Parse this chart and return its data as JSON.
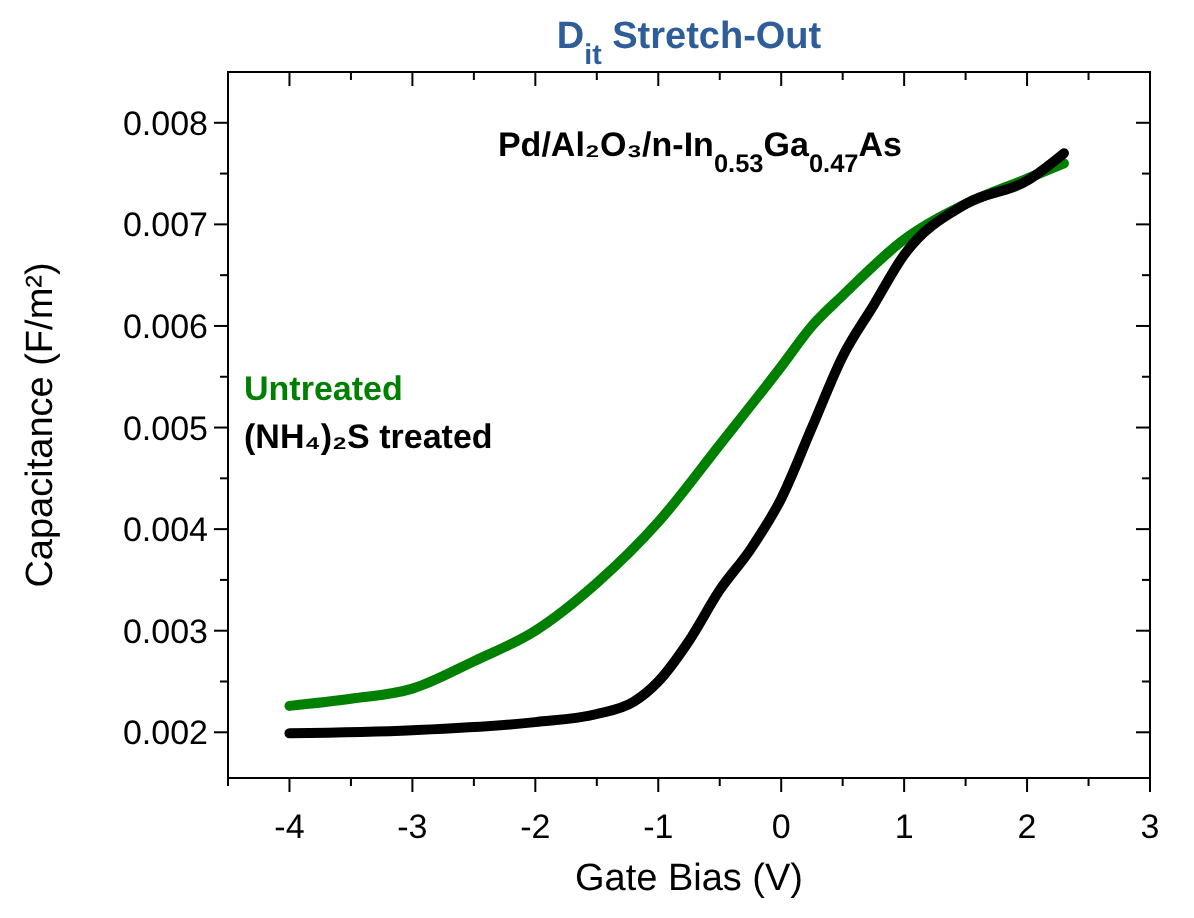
{
  "chart_data": {
    "type": "line",
    "title": "D$_{it}$ Stretch-Out",
    "xlabel": "Gate Bias (V)",
    "ylabel": "Capacitance (F/m²)",
    "annotations": [
      "Pd/Al₂O₃/n-In$_{0.53}$Ga$_{0.47}$As"
    ],
    "legend": "left",
    "marker": "none",
    "line_style": "solid",
    "grid": false,
    "xlim": [
      -4.5,
      3
    ],
    "xticks": [
      {
        "value": -4.5,
        "label": null
      },
      -4,
      {
        "value": -3.5,
        "label": null
      },
      -3,
      {
        "value": -2.5,
        "label": null
      },
      -2,
      {
        "value": -1.5,
        "label": null
      },
      -1,
      {
        "value": -0.5,
        "label": null
      },
      0,
      {
        "value": 0.5,
        "label": null
      },
      1,
      {
        "value": 1.5,
        "label": null
      },
      2,
      {
        "value": 2.5,
        "label": null
      },
      3
    ],
    "ylim": [
      0.00155,
      0.0085
    ],
    "yticks": [
      0.002,
      {
        "value": 0.0025,
        "label": null
      },
      0.003,
      {
        "value": 0.0035,
        "label": null
      },
      0.004,
      {
        "value": 0.0045,
        "label": null
      },
      0.005,
      {
        "value": 0.0055,
        "label": null
      },
      0.006,
      {
        "value": 0.0065,
        "label": null
      },
      0.007,
      {
        "value": 0.0075,
        "label": null
      },
      0.008
    ],
    "series": [
      {
        "name": "Untreated",
        "color": "#008000",
        "x": [
          -4,
          -3.5,
          -3,
          -2.5,
          -2,
          -1.5,
          -1,
          -0.5,
          0,
          0.25,
          0.5,
          1,
          1.5,
          2,
          2.3
        ],
        "values": [
          0.00226,
          0.00233,
          0.00243,
          0.0027,
          0.003,
          0.00347,
          0.00407,
          0.00483,
          0.0056,
          0.006,
          0.0063,
          0.00685,
          0.0072,
          0.00745,
          0.0076
        ]
      },
      {
        "name": "(NH₄)₂S treated",
        "color": "#000000",
        "x": [
          -4,
          -3,
          -2,
          -1.5,
          -1.2,
          -1,
          -0.75,
          -0.5,
          -0.25,
          0,
          0.25,
          0.5,
          0.75,
          1,
          1.5,
          2,
          2.3
        ],
        "values": [
          0.00199,
          0.00202,
          0.0021,
          0.00218,
          0.0023,
          0.0025,
          0.0029,
          0.0034,
          0.0038,
          0.0043,
          0.005,
          0.0057,
          0.0062,
          0.0067,
          0.0072,
          0.00743,
          0.0077
        ]
      }
    ]
  }
}
